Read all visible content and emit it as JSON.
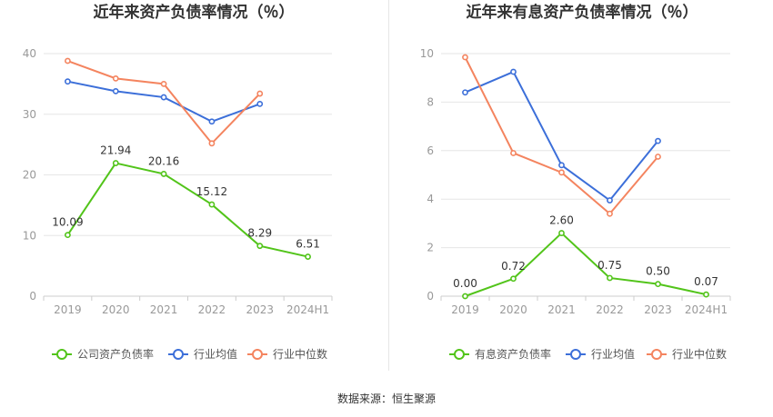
{
  "colors": {
    "company": "#52c41a",
    "avg": "#3c6fd9",
    "median": "#f4845f",
    "grid": "#e6e6e6",
    "axis_text": "#999999",
    "label_text": "#333333"
  },
  "chart_data": [
    {
      "type": "line",
      "title": "近年来资产负债率情况（％）",
      "categories": [
        "2019",
        "2020",
        "2021",
        "2022",
        "2023",
        "2024H1"
      ],
      "ylim": [
        0,
        40
      ],
      "yticks": [
        0,
        10,
        20,
        30,
        40
      ],
      "grid": true,
      "legend_position": "bottom",
      "series": [
        {
          "name": "公司资产负债率",
          "key": "company",
          "values": [
            10.09,
            21.94,
            20.16,
            15.12,
            8.29,
            6.51
          ],
          "labels": [
            "10.09",
            "21.94",
            "20.16",
            "15.12",
            "8.29",
            "6.51"
          ]
        },
        {
          "name": "行业均值",
          "key": "avg",
          "values": [
            35.4,
            33.8,
            32.8,
            28.8,
            31.7,
            null
          ]
        },
        {
          "name": "行业中位数",
          "key": "median",
          "values": [
            38.8,
            35.9,
            35.0,
            25.2,
            33.4,
            null
          ]
        }
      ]
    },
    {
      "type": "line",
      "title": "近年来有息资产负债率情况（％）",
      "categories": [
        "2019",
        "2020",
        "2021",
        "2022",
        "2023",
        "2024H1"
      ],
      "ylim": [
        0,
        10
      ],
      "yticks": [
        0,
        2,
        4,
        6,
        8,
        10
      ],
      "grid": true,
      "legend_position": "bottom",
      "series": [
        {
          "name": "有息资产负债率",
          "key": "company",
          "values": [
            0.0,
            0.72,
            2.6,
            0.75,
            0.5,
            0.07
          ],
          "labels": [
            "0.00",
            "0.72",
            "2.60",
            "0.75",
            "0.50",
            "0.07"
          ]
        },
        {
          "name": "行业均值",
          "key": "avg",
          "values": [
            8.4,
            9.25,
            5.4,
            3.95,
            6.4,
            null
          ]
        },
        {
          "name": "行业中位数",
          "key": "median",
          "values": [
            9.85,
            5.9,
            5.1,
            3.4,
            5.75,
            null
          ]
        }
      ]
    }
  ],
  "footer": "数据来源：恒生聚源"
}
